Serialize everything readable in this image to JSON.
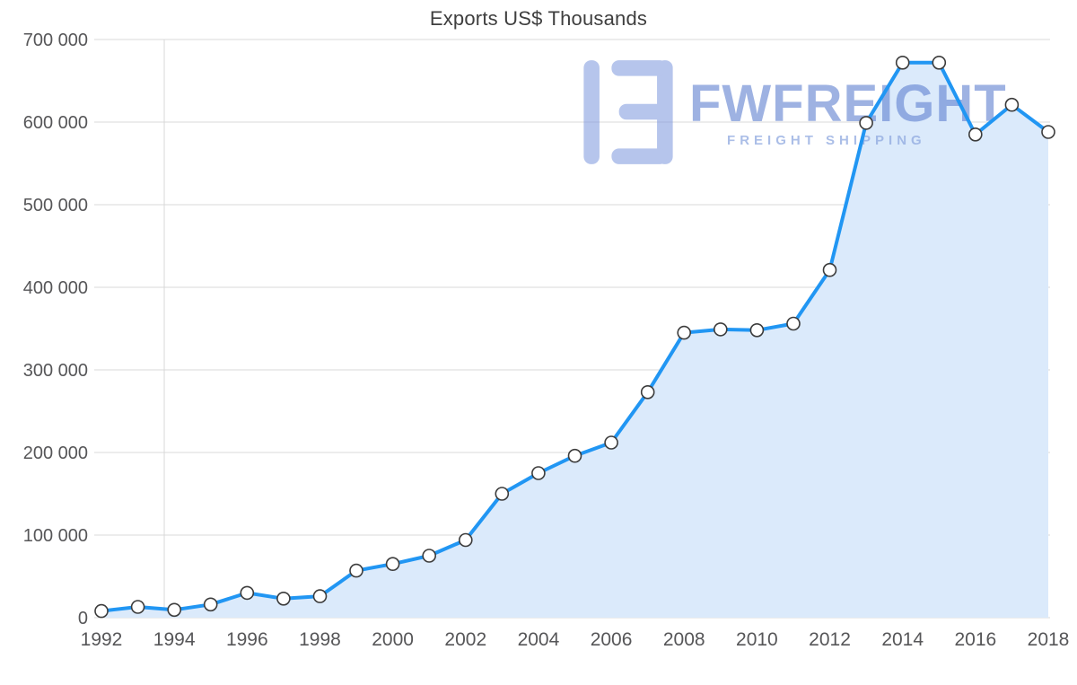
{
  "watermark": {
    "brand": "FWFREIGHT",
    "tagline": "FREIGHT SHIPPING",
    "logo_color": "#7b96dd",
    "brand_color": "#5f80d0",
    "tagline_color": "#8fa9e0"
  },
  "chart_data": {
    "type": "area",
    "title": "Exports US$ Thousands",
    "xlabel": "",
    "ylabel": "",
    "x": [
      1992,
      1993,
      1994,
      1995,
      1996,
      1997,
      1998,
      1999,
      2000,
      2001,
      2002,
      2003,
      2004,
      2005,
      2006,
      2007,
      2008,
      2009,
      2010,
      2011,
      2012,
      2013,
      2014,
      2015,
      2016,
      2017,
      2018
    ],
    "values": [
      8000,
      13000,
      9500,
      16000,
      30000,
      23000,
      26000,
      57000,
      65000,
      75000,
      94000,
      150000,
      175000,
      196000,
      212000,
      273000,
      345000,
      349000,
      348000,
      356000,
      421000,
      599000,
      672000,
      672000,
      585000,
      621000,
      588000
    ],
    "ylim": [
      0,
      700000
    ],
    "y_tick_step": 100000,
    "y_tick_labels": [
      "0",
      "100 000",
      "200 000",
      "300 000",
      "400 000",
      "500 000",
      "600 000",
      "700 000"
    ],
    "x_tick_labels": [
      "1992",
      "1994",
      "1996",
      "1998",
      "2000",
      "2002",
      "2004",
      "2006",
      "2008",
      "2010",
      "2012",
      "2014",
      "2016",
      "2018"
    ],
    "grid": true,
    "legend_position": "none",
    "line_color": "#2196f3",
    "area_color": "#dbeafb",
    "marker_fill": "#ffffff",
    "marker_stroke": "#3c3c3c",
    "grid_color": "#d9d9d9",
    "axis_label_color": "#565658"
  }
}
